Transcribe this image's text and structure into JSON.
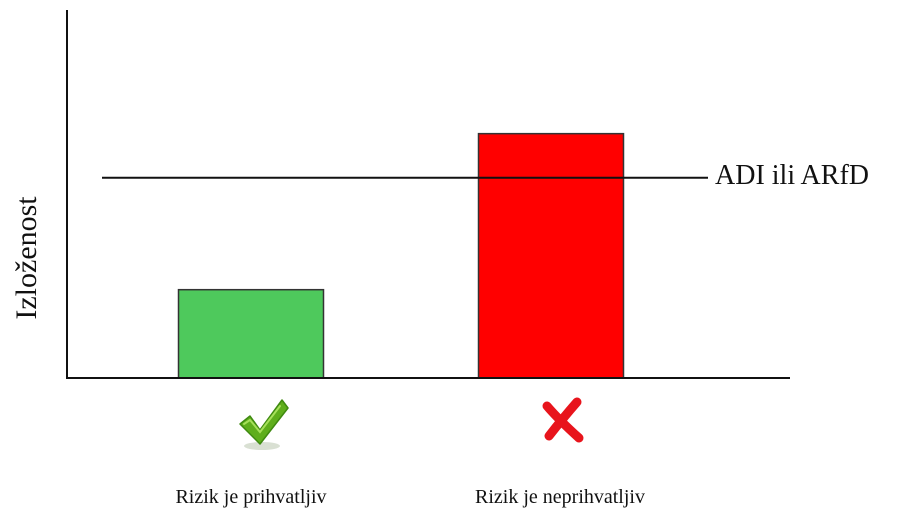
{
  "chart_data": {
    "type": "bar",
    "title": "",
    "xlabel": "",
    "ylabel": "Izloženost",
    "categories": [
      "Rizik je prihvatljiv",
      "Rizik je neprihvatljiv"
    ],
    "values": [
      30,
      83
    ],
    "bar_colors": [
      "#4ec95c",
      "#ff0000"
    ],
    "status_icons": [
      "check-icon",
      "cross-icon"
    ],
    "icon_colors": [
      "#5fae1c",
      "#e8141c"
    ],
    "ylim": [
      0,
      125
    ],
    "reference_line": {
      "label": "ADI ili ARfD",
      "value": 68
    },
    "grid": false,
    "legend": "none"
  }
}
